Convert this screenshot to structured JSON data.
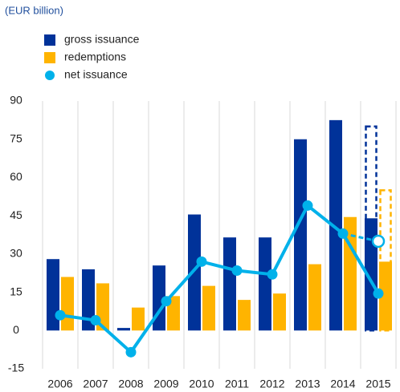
{
  "chart_data": {
    "type": "bar_line",
    "subtitle": "(EUR billion)",
    "categories": [
      "2006",
      "2007",
      "2008",
      "2009",
      "2010",
      "2011",
      "2012",
      "2013",
      "2014",
      "2015"
    ],
    "series": [
      {
        "name": "gross issuance",
        "color": "#003299",
        "kind": "bar",
        "values": [
          28,
          24,
          1,
          25.5,
          45.5,
          36.5,
          36.5,
          75,
          82.5,
          44
        ],
        "projected_values": [
          null,
          null,
          null,
          null,
          null,
          null,
          null,
          null,
          null,
          80
        ]
      },
      {
        "name": "redemptions",
        "color": "#ffb400",
        "kind": "bar",
        "values": [
          21,
          18.5,
          9,
          13.5,
          17.5,
          12,
          14.5,
          26,
          44.5,
          27
        ],
        "projected_values": [
          null,
          null,
          null,
          null,
          null,
          null,
          null,
          null,
          null,
          55
        ]
      },
      {
        "name": "net issuance",
        "color": "#00b1ea",
        "kind": "line",
        "values": [
          6,
          4,
          -8.5,
          11.5,
          27,
          23.5,
          22,
          49,
          38,
          14.5
        ],
        "projected_values": [
          null,
          null,
          null,
          null,
          null,
          null,
          null,
          null,
          null,
          35
        ]
      }
    ],
    "ylim": [
      -15,
      90
    ],
    "yticks": [
      -15,
      0,
      15,
      30,
      45,
      60,
      75,
      90
    ],
    "grid": "vertical"
  }
}
